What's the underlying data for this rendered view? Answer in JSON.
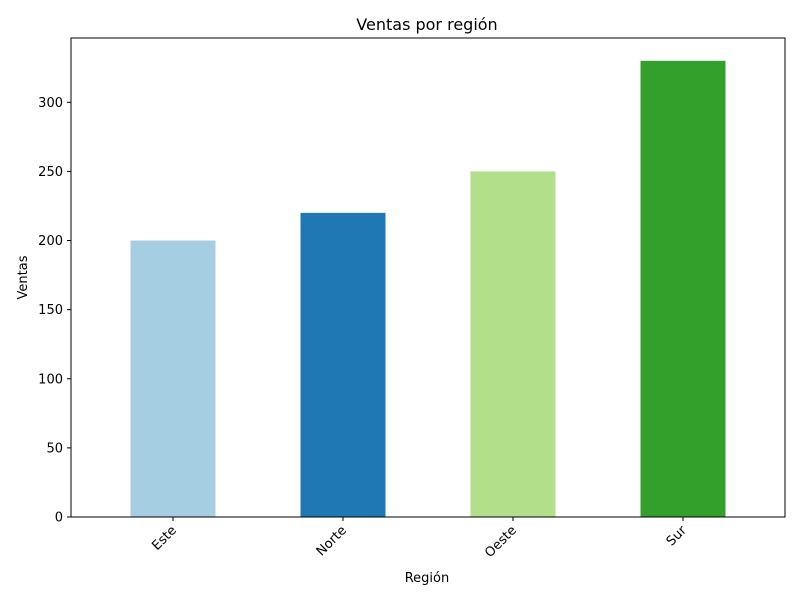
{
  "chart_data": {
    "type": "bar",
    "title": "Ventas por región",
    "xlabel": "Región",
    "ylabel": "Ventas",
    "categories": [
      "Este",
      "Norte",
      "Oeste",
      "Sur"
    ],
    "values": [
      200,
      220,
      250,
      330
    ],
    "colors": [
      "#a6cee3",
      "#1f78b4",
      "#b2df8a",
      "#33a02c"
    ],
    "ylim": [
      0,
      346.5
    ],
    "yticks": [
      0,
      50,
      100,
      150,
      200,
      250,
      300
    ],
    "grid": false,
    "legend": "none"
  }
}
